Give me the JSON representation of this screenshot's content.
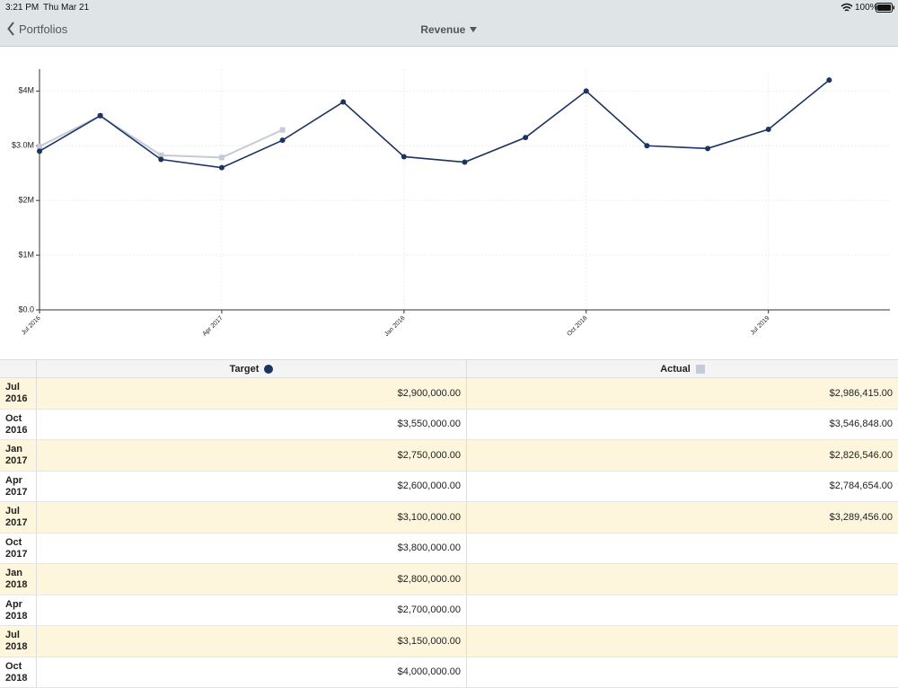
{
  "status": {
    "time": "3:21 PM",
    "date": "Thu Mar 21",
    "battery": "100%"
  },
  "nav": {
    "back": "Portfolios",
    "title": "Revenue"
  },
  "chart_data": {
    "type": "line",
    "categories": [
      "Jul 2016",
      null,
      null,
      "Apr 2017",
      null,
      null,
      "Jan 2018",
      null,
      null,
      "Oct 2018",
      null,
      null,
      "Jul 2019",
      null
    ],
    "series": [
      {
        "name": "Target",
        "color": "#1c3461",
        "values": [
          2900000,
          3550000,
          2750000,
          2600000,
          3100000,
          3800000,
          2800000,
          2700000,
          3150000,
          4000000,
          3000000,
          2950000,
          3300000,
          4200000
        ]
      },
      {
        "name": "Actual",
        "color": "#c5cad8",
        "values": [
          2986415,
          3546848,
          2826546,
          2784654,
          3289456,
          null,
          null,
          null,
          null,
          null,
          null,
          null,
          null,
          null
        ]
      }
    ],
    "ylim": [
      0,
      4400000
    ],
    "yticks": [
      {
        "value": 0,
        "label": "$0.0"
      },
      {
        "value": 1000000,
        "label": "$1M"
      },
      {
        "value": 2000000,
        "label": "$2M"
      },
      {
        "value": 3000000,
        "label": "$3.0M"
      },
      {
        "value": 4000000,
        "label": "$4M"
      }
    ],
    "grid": true
  },
  "table": {
    "rows": [
      {
        "period": "Jul 2016",
        "target": "$2,900,000.00",
        "actual": "$2,986,415.00"
      },
      {
        "period": "Oct 2016",
        "target": "$3,550,000.00",
        "actual": "$3,546,848.00"
      },
      {
        "period": "Jan 2017",
        "target": "$2,750,000.00",
        "actual": "$2,826,546.00"
      },
      {
        "period": "Apr 2017",
        "target": "$2,600,000.00",
        "actual": "$2,784,654.00"
      },
      {
        "period": "Jul 2017",
        "target": "$3,100,000.00",
        "actual": "$3,289,456.00"
      },
      {
        "period": "Oct 2017",
        "target": "$3,800,000.00"
      },
      {
        "period": "Jan 2018",
        "target": "$2,800,000.00"
      },
      {
        "period": "Apr 2018",
        "target": "$2,700,000.00"
      },
      {
        "period": "Jul 2018",
        "target": "$3,150,000.00"
      },
      {
        "period": "Oct 2018",
        "target": "$4,000,000.00"
      }
    ]
  }
}
